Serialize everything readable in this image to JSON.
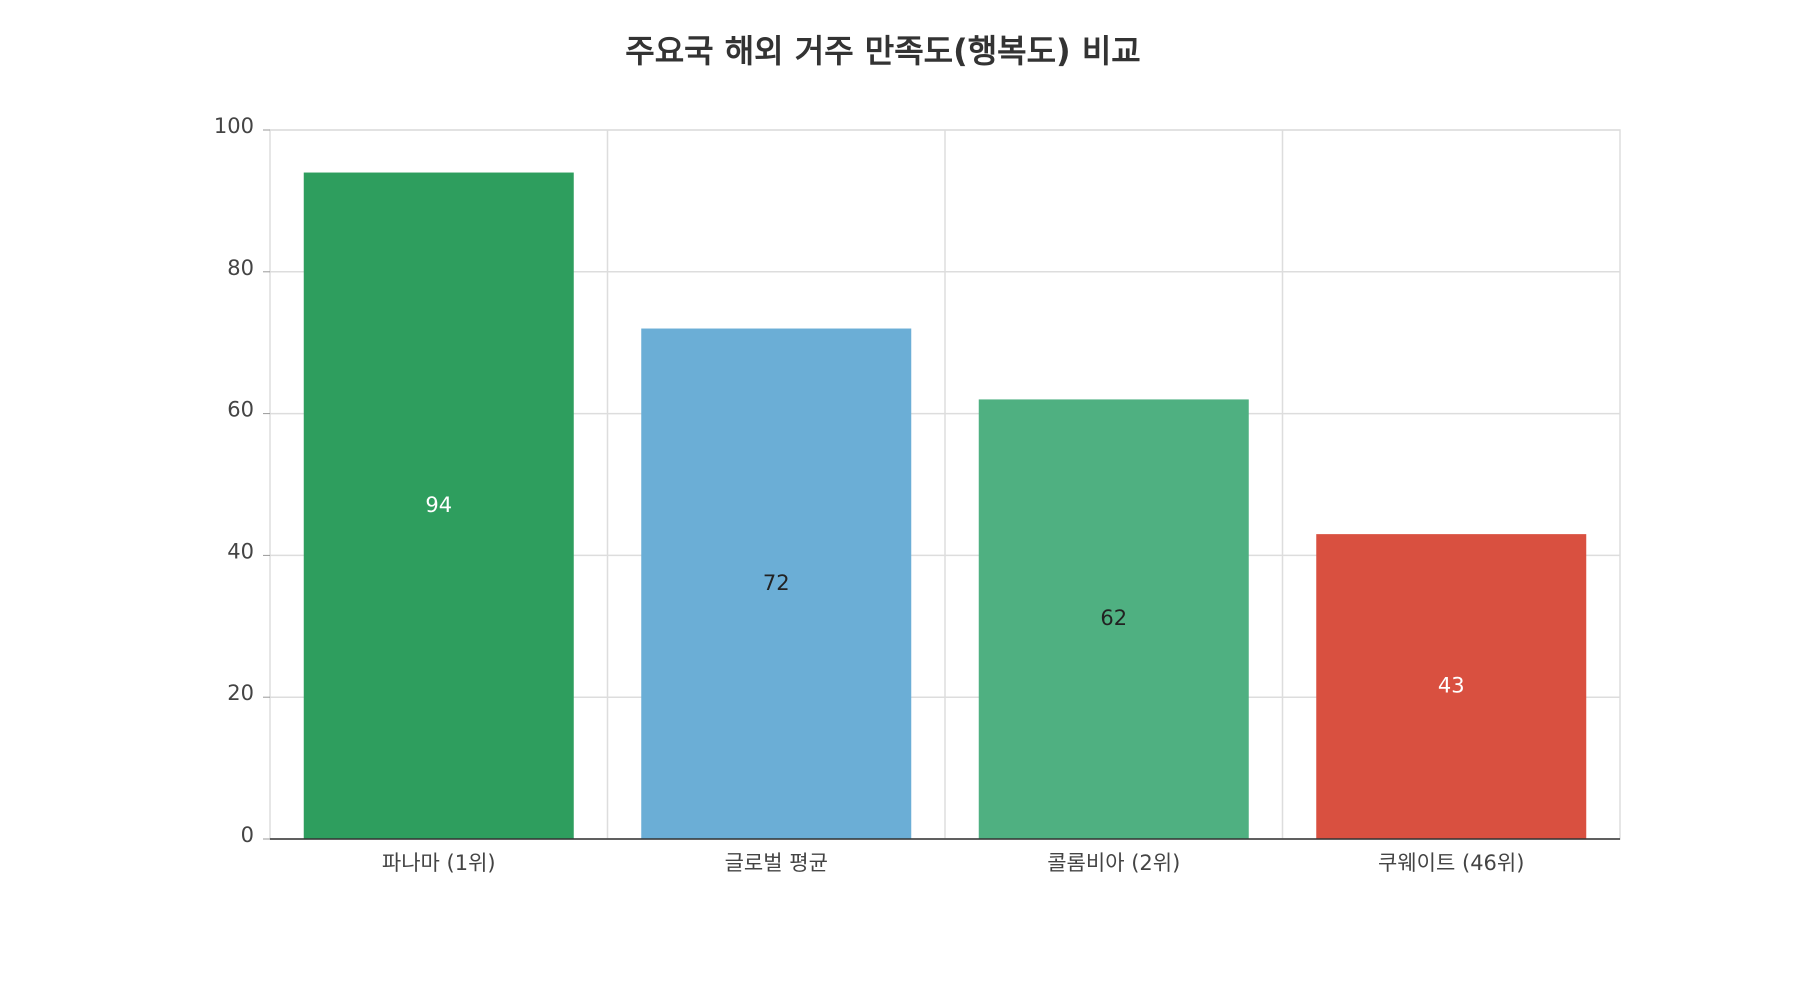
{
  "chart_data": {
    "type": "bar",
    "title": "주요국 해외 거주 만족도(행복도) 비교",
    "categories": [
      "파나마 (1위)",
      "글로벌 평균",
      "콜롬비아 (2위)",
      "쿠웨이트 (46위)"
    ],
    "values": [
      94,
      72,
      62,
      43
    ],
    "colors": [
      "#2e9e5e",
      "#6baed6",
      "#4fb081",
      "#d95040"
    ],
    "ylim": [
      0,
      100
    ],
    "yticks": [
      0,
      20,
      40,
      60,
      80,
      100
    ],
    "grid": true
  }
}
